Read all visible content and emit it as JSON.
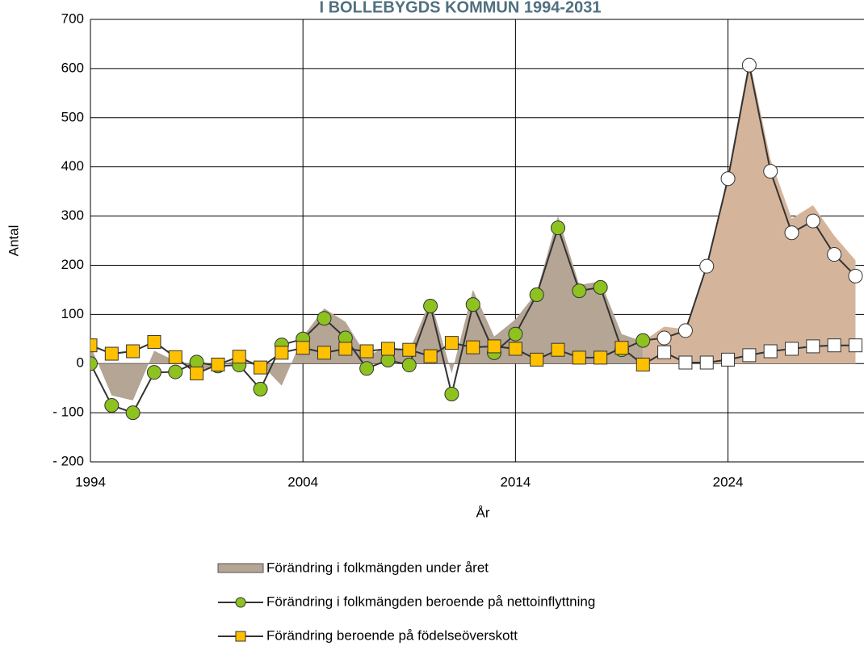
{
  "chart_data": {
    "type": "line",
    "title": "I BOLLEBYGDS KOMMUN 1994-2031",
    "x_label": "År",
    "y_label": "Antal",
    "x": [
      1994,
      1995,
      1996,
      1997,
      1998,
      1999,
      2000,
      2001,
      2002,
      2003,
      2004,
      2005,
      2006,
      2007,
      2008,
      2009,
      2010,
      2011,
      2012,
      2013,
      2014,
      2015,
      2016,
      2017,
      2018,
      2019,
      2020,
      2021,
      2022,
      2023,
      2024,
      2025,
      2026,
      2027,
      2028,
      2029,
      2030
    ],
    "forecast_from": 2021,
    "series": [
      {
        "name": "Förändring i folkmängden under året",
        "kind": "area",
        "color": "#b5a595",
        "forecast_color": "#d4b59c",
        "values": [
          37,
          -65,
          -75,
          26,
          5,
          -15,
          -5,
          10,
          0,
          -45,
          55,
          112,
          85,
          15,
          35,
          25,
          130,
          -20,
          150,
          55,
          90,
          145,
          300,
          160,
          167,
          60,
          45,
          75,
          70,
          200,
          385,
          620,
          415,
          295,
          322,
          260,
          210
        ]
      },
      {
        "name": "Förändring i folkmängden beroende på nettoinflyttning",
        "kind": "circle",
        "color": "#8dc21f",
        "line_color": "#333333",
        "forecast_color": "#ffffff",
        "values": [
          0,
          -85,
          -100,
          -18,
          -17,
          3,
          -5,
          -3,
          -52,
          38,
          50,
          92,
          52,
          -10,
          7,
          -3,
          117,
          -62,
          120,
          22,
          60,
          140,
          276,
          148,
          155,
          28,
          47,
          52,
          67,
          198,
          376,
          607,
          391,
          266,
          290,
          222,
          178
        ]
      },
      {
        "name": "Förändring beroende på födelseöverskott",
        "kind": "square",
        "color": "#ffc000",
        "line_color": "#333333",
        "forecast_color": "#ffffff",
        "values": [
          37,
          20,
          25,
          44,
          13,
          -20,
          -2,
          14,
          -8,
          22,
          32,
          22,
          30,
          25,
          30,
          28,
          15,
          42,
          33,
          35,
          30,
          8,
          28,
          12,
          12,
          32,
          -2,
          23,
          2,
          2,
          8,
          17,
          25,
          30,
          35,
          37,
          37
        ]
      }
    ],
    "xlim": [
      1994,
      2030.4
    ],
    "xticks": [
      1994,
      2004,
      2014,
      2024
    ],
    "ylim": [
      -200,
      700
    ],
    "yticks": [
      {
        "value": -200,
        "label": "- 200"
      },
      {
        "value": -100,
        "label": "- 100"
      },
      0,
      100,
      200,
      300,
      400,
      500,
      600,
      700
    ],
    "grid": true
  }
}
